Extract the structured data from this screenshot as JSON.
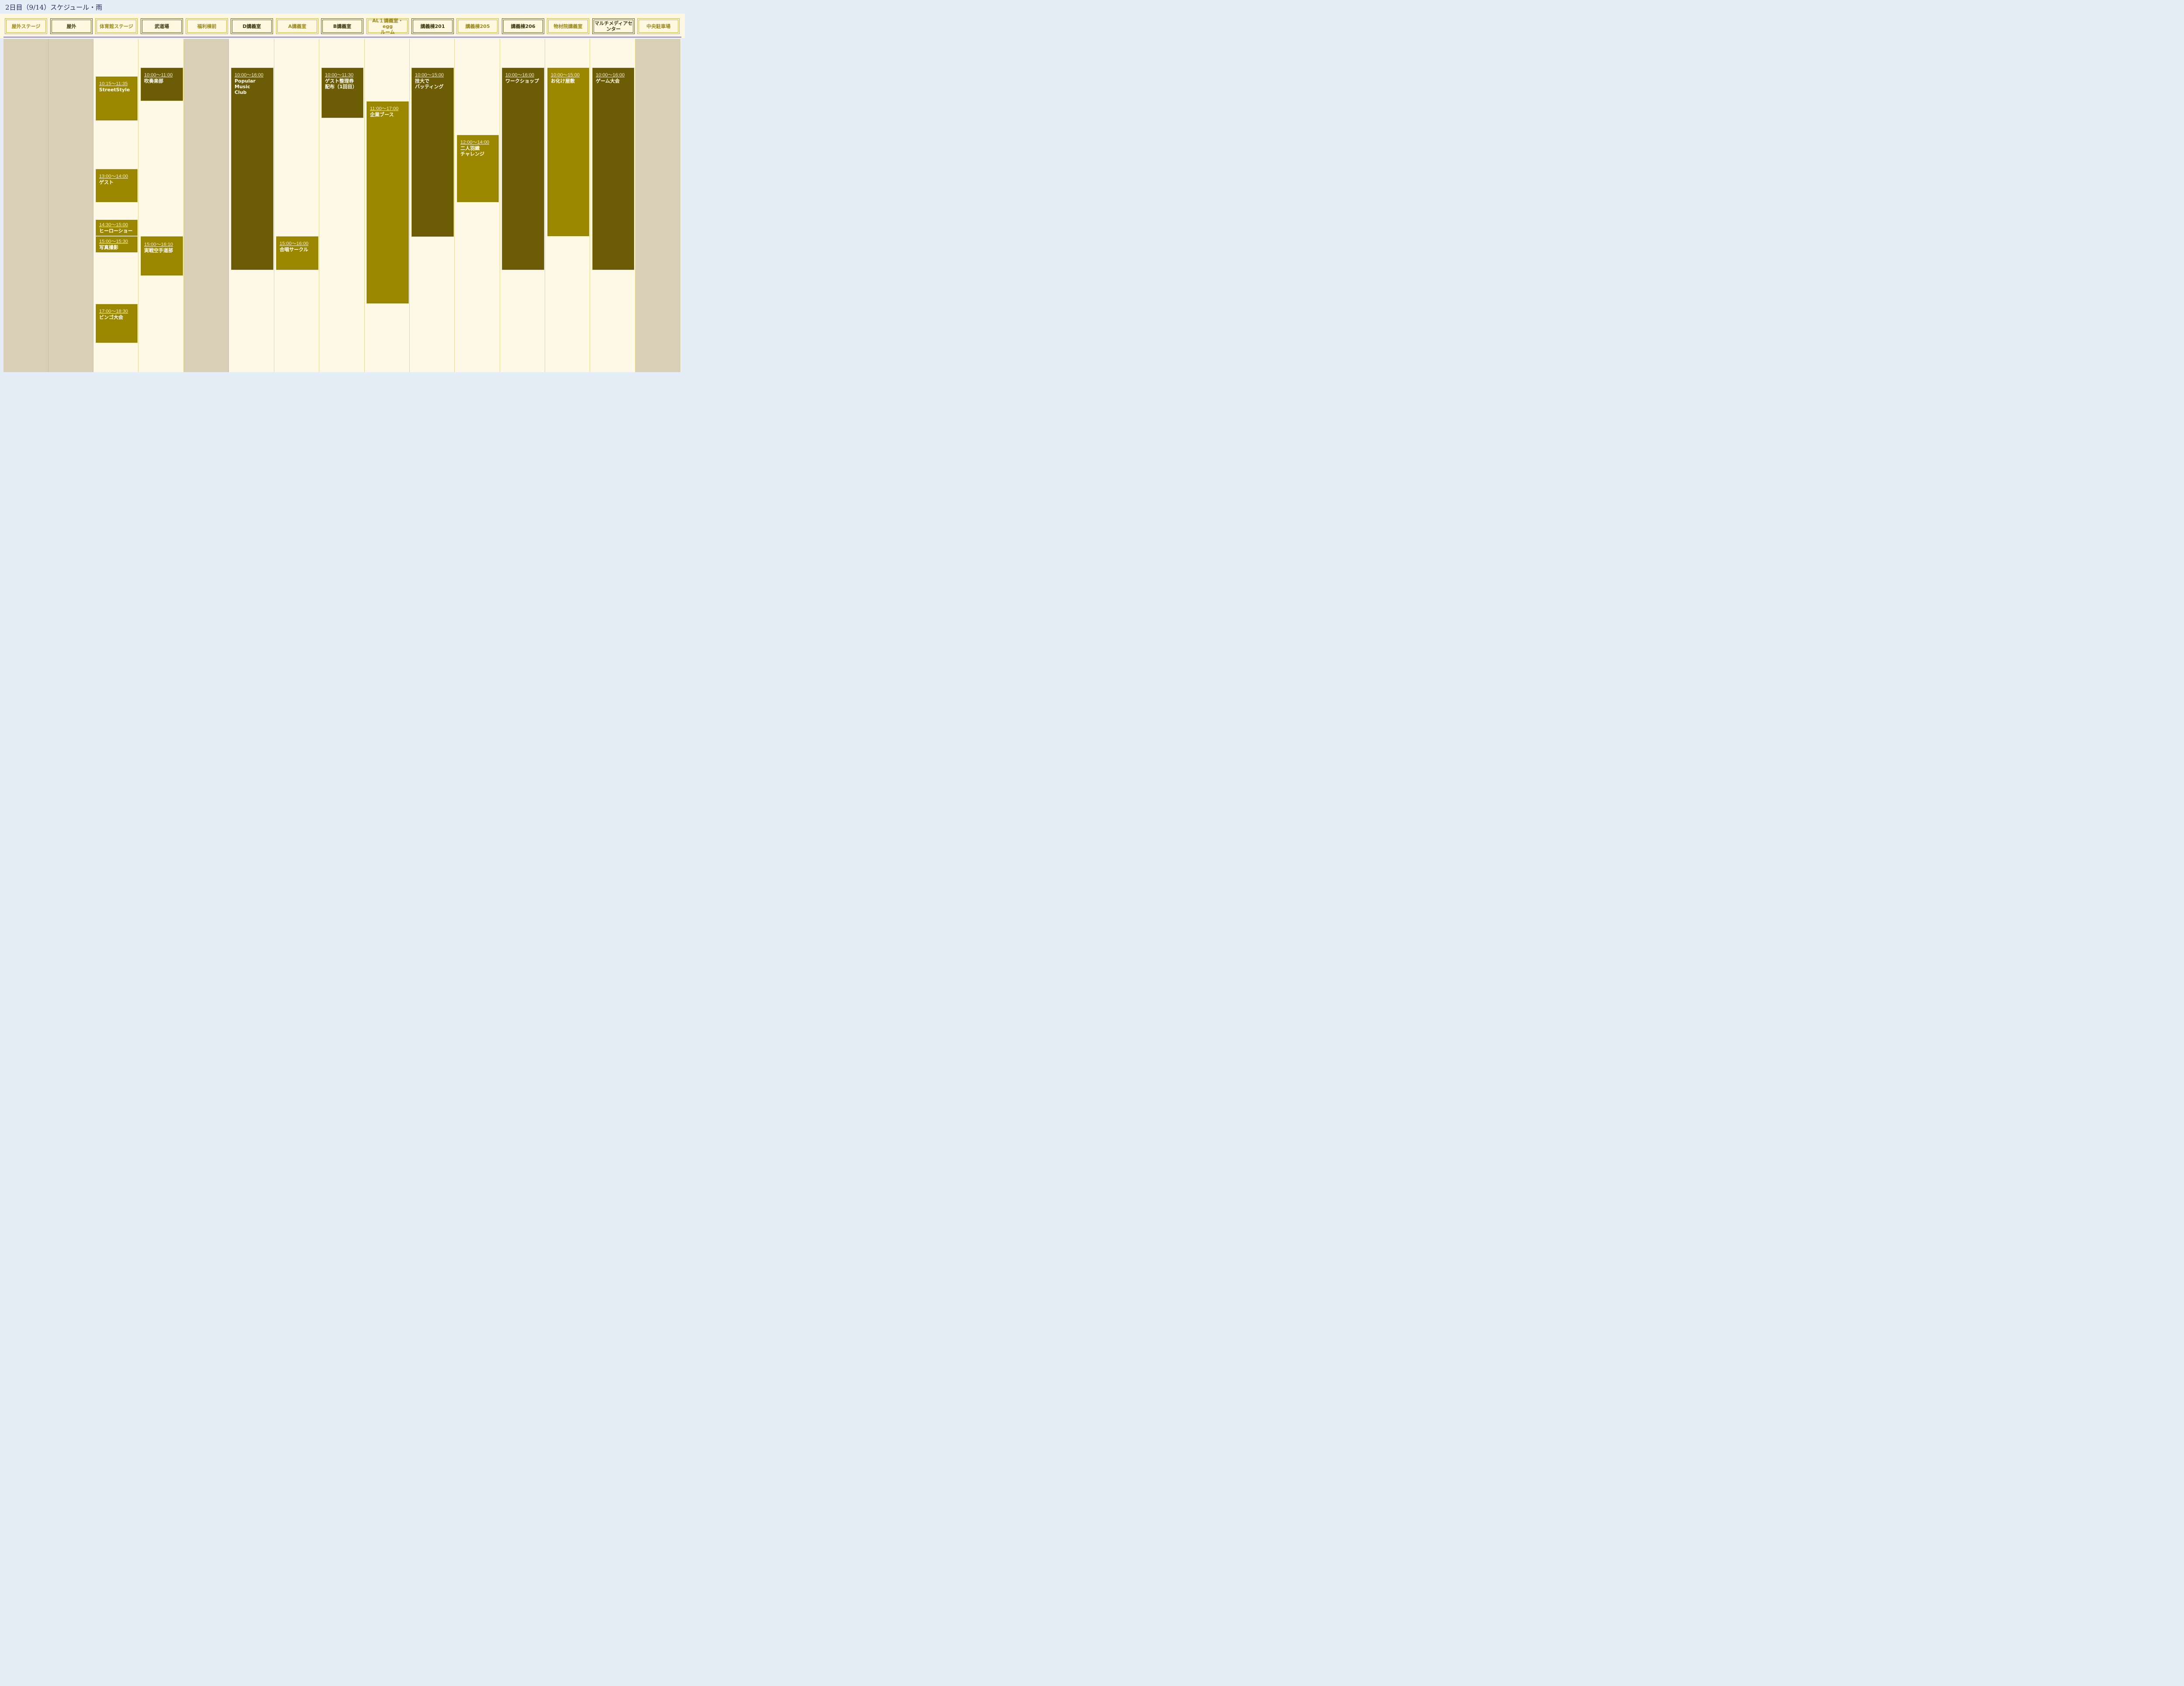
{
  "page": {
    "title": "2日目（9/14）スケジュール・雨"
  },
  "venues": [
    "屋外ステージ",
    "屋外",
    "体育館ステージ",
    "武道場",
    "福利棟前",
    "D講義室",
    "A講義室",
    "B講義室",
    "AL１講義室・egg\nルーム",
    "講義棟201",
    "講義棟205",
    "講義棟206",
    "物材院講義室",
    "マルチメディアセ\nンター",
    "中央駐車場"
  ],
  "events": [
    {
      "venue": "体育館ステージ",
      "time": "10:15〜11:35",
      "title": "StreetStyle"
    },
    {
      "venue": "体育館ステージ",
      "time": "13:00〜14:00",
      "title": "ゲスト"
    },
    {
      "venue": "体育館ステージ",
      "time": "14:30〜15:00",
      "title": "ヒーローショー"
    },
    {
      "venue": "体育館ステージ",
      "time": "15:00〜15:30",
      "title": "写真撮影"
    },
    {
      "venue": "体育館ステージ",
      "time": "17:00〜18:30",
      "title": "ビンゴ大会"
    },
    {
      "venue": "武道場",
      "time": "10:00〜11:00",
      "title": "吹奏楽部"
    },
    {
      "venue": "武道場",
      "time": "15:00〜16:10",
      "title": "実戦空手道部"
    },
    {
      "venue": "D講義室",
      "time": "10:00〜16:00",
      "title": "Popular Music\nClub"
    },
    {
      "venue": "A講義室",
      "time": "15:00〜16:00",
      "title": "合唱サークル"
    },
    {
      "venue": "B講義室",
      "time": "10:00〜11:30",
      "title": "ゲスト整理券\n配布（1回目）"
    },
    {
      "venue": "AL１講義室・eggルーム",
      "time": "11:00〜17:00",
      "title": "企業ブース"
    },
    {
      "venue": "講義棟201",
      "time": "10:00〜15:00",
      "title": "技大で\nバッティング"
    },
    {
      "venue": "講義棟205",
      "time": "12:00〜14:00",
      "title": "二人羽織\nチャレンジ"
    },
    {
      "venue": "講義棟206",
      "time": "10:00〜16:00",
      "title": "ワークショップ"
    },
    {
      "venue": "物材院講義室",
      "time": "10:00〜15:00",
      "title": "お化け屋敷"
    },
    {
      "venue": "マルチメディアセンター",
      "time": "10:00〜16:00",
      "title": "ゲーム大会"
    }
  ],
  "colors": {
    "background": "#e5edf6",
    "grid": "#fef9e6",
    "closed_column": "#d9cfb7",
    "event_mid": "#9b8700",
    "event_dark": "#6b5c05",
    "venue_border": "#c9b13a",
    "divider": "#8a78c4"
  }
}
